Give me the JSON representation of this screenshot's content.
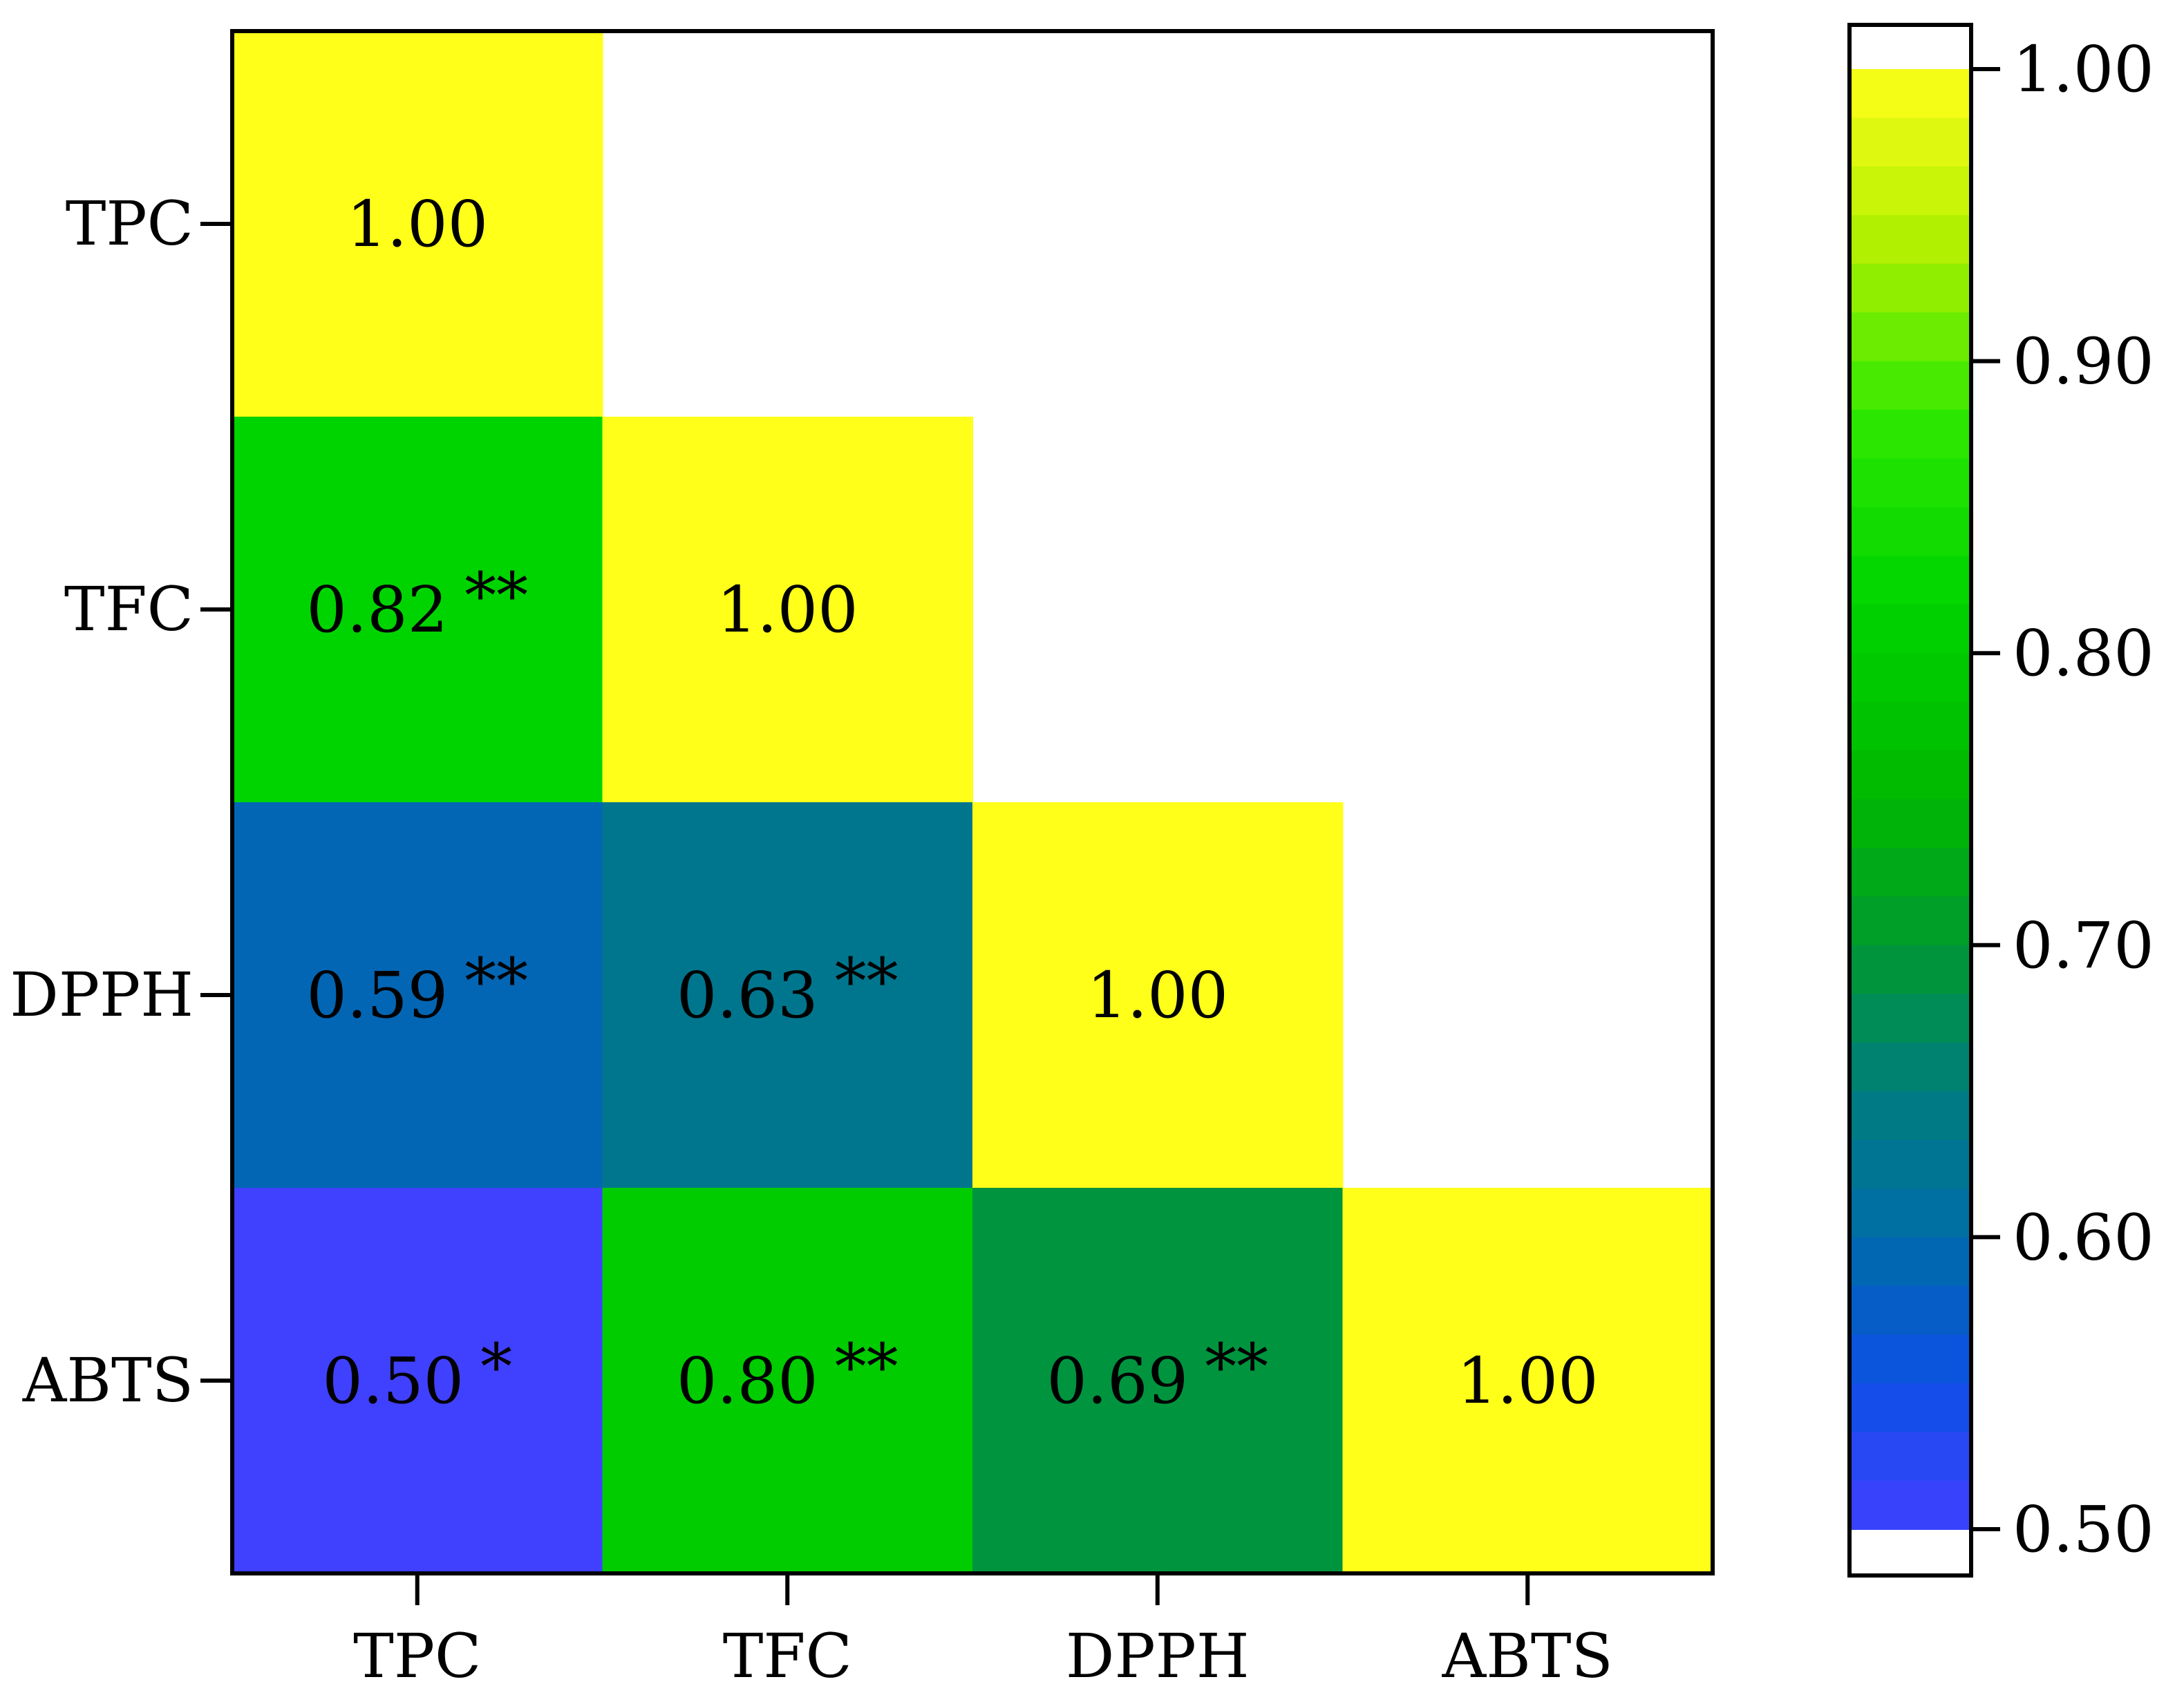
{
  "chart_data": {
    "type": "heatmap",
    "title": "",
    "xlabel": "",
    "ylabel": "",
    "categories": [
      "TPC",
      "TFC",
      "DPPH",
      "ABTS"
    ],
    "rows": [
      "TPC",
      "TFC",
      "DPPH",
      "ABTS"
    ],
    "triangle": "lower",
    "cells": [
      {
        "row": "TPC",
        "col": "TPC",
        "value": 1.0,
        "label": "1.00",
        "sig": ""
      },
      {
        "row": "TFC",
        "col": "TPC",
        "value": 0.82,
        "label": "0.82",
        "sig": "**"
      },
      {
        "row": "TFC",
        "col": "TFC",
        "value": 1.0,
        "label": "1.00",
        "sig": ""
      },
      {
        "row": "DPPH",
        "col": "TPC",
        "value": 0.59,
        "label": "0.59",
        "sig": "**"
      },
      {
        "row": "DPPH",
        "col": "TFC",
        "value": 0.63,
        "label": "0.63",
        "sig": "**"
      },
      {
        "row": "DPPH",
        "col": "DPPH",
        "value": 1.0,
        "label": "1.00",
        "sig": ""
      },
      {
        "row": "ABTS",
        "col": "TPC",
        "value": 0.5,
        "label": "0.50",
        "sig": "*"
      },
      {
        "row": "ABTS",
        "col": "TFC",
        "value": 0.8,
        "label": "0.80",
        "sig": "**"
      },
      {
        "row": "ABTS",
        "col": "DPPH",
        "value": 0.69,
        "label": "0.69",
        "sig": "**"
      },
      {
        "row": "ABTS",
        "col": "ABTS",
        "value": 1.0,
        "label": "1.00",
        "sig": ""
      }
    ],
    "colorbar": {
      "range": [
        0.5,
        1.0
      ],
      "ticks": [
        {
          "value": 0.5,
          "label": "0.50"
        },
        {
          "value": 0.6,
          "label": "0.60"
        },
        {
          "value": 0.7,
          "label": "0.70"
        },
        {
          "value": 0.8,
          "label": "0.80"
        },
        {
          "value": 0.9,
          "label": "0.90"
        },
        {
          "value": 1.0,
          "label": "1.00"
        }
      ],
      "stops": [
        {
          "value": 0.5,
          "color": "#4040ff"
        },
        {
          "value": 0.55,
          "color": "#0d4fe6"
        },
        {
          "value": 0.6,
          "color": "#006ca8"
        },
        {
          "value": 0.65,
          "color": "#007d7d"
        },
        {
          "value": 0.7,
          "color": "#009a30"
        },
        {
          "value": 0.75,
          "color": "#00b800"
        },
        {
          "value": 0.82,
          "color": "#00d400"
        },
        {
          "value": 0.88,
          "color": "#2ee800"
        },
        {
          "value": 0.94,
          "color": "#b0f000"
        },
        {
          "value": 1.0,
          "color": "#ffff1a"
        }
      ]
    }
  }
}
